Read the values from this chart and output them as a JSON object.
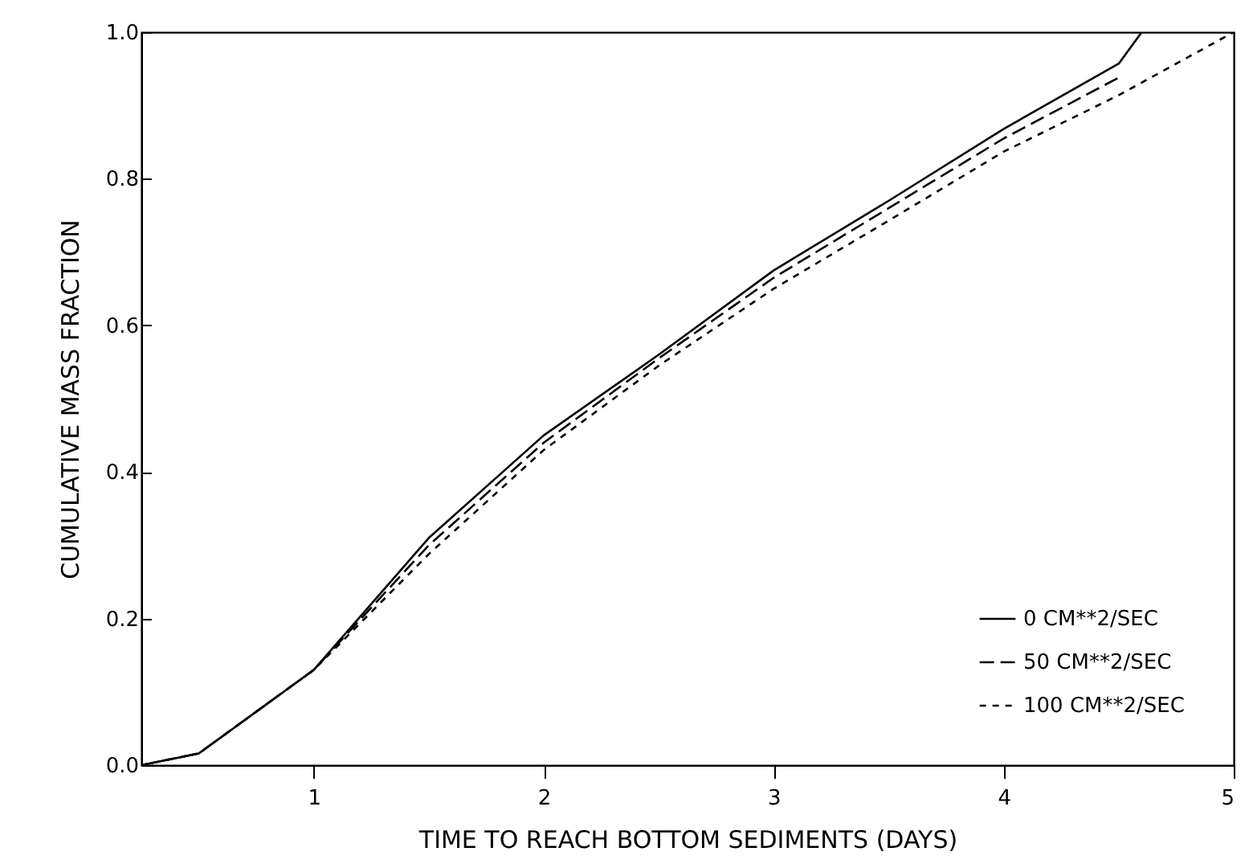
{
  "chart_data": {
    "type": "line",
    "xlabel": "TIME TO REACH BOTTOM SEDIMENTS (DAYS)",
    "ylabel": "CUMULATIVE MASS FRACTION",
    "xlim": [
      0.25,
      5
    ],
    "xticks": [
      1,
      2,
      3,
      4,
      5
    ],
    "ylim": [
      0,
      1
    ],
    "yticks": [
      {
        "value": 0,
        "label": "0.0"
      },
      {
        "value": 0.2,
        "label": "0.2"
      },
      {
        "value": 0.4,
        "label": "0.4"
      },
      {
        "value": 0.6,
        "label": "0.6"
      },
      {
        "value": 0.8,
        "label": "0.8"
      },
      {
        "value": 1,
        "label": "1.0"
      }
    ],
    "legend": "bottom right",
    "grid": false,
    "marker": "none",
    "series": [
      {
        "name": "0 CM**2/SEC",
        "color": "#000000",
        "line_style": "solid",
        "x": [
          0.25,
          0.5,
          1,
          1.5,
          2,
          2.5,
          3,
          3.5,
          4,
          4.5,
          4.6
        ],
        "values": [
          0,
          0.016,
          0.13,
          0.31,
          0.45,
          0.56,
          0.675,
          0.77,
          0.868,
          0.957,
          1.0
        ]
      },
      {
        "name": "50 CM**2/SEC",
        "color": "#000000",
        "line_style": "dashed",
        "x": [
          0.25,
          0.5,
          1,
          1.5,
          2,
          2.5,
          3,
          3.5,
          4,
          4.5
        ],
        "values": [
          0,
          0.016,
          0.13,
          0.3,
          0.44,
          0.555,
          0.665,
          0.76,
          0.855,
          0.938
        ]
      },
      {
        "name": "100 CM**2/SEC",
        "color": "#000000",
        "line_style": "dotted",
        "x": [
          0.25,
          0.5,
          1,
          1.5,
          2,
          2.5,
          3,
          3.5,
          4,
          4.5,
          5
        ],
        "values": [
          0,
          0.016,
          0.13,
          0.288,
          0.43,
          0.545,
          0.65,
          0.743,
          0.837,
          0.914,
          1.0
        ]
      }
    ]
  }
}
